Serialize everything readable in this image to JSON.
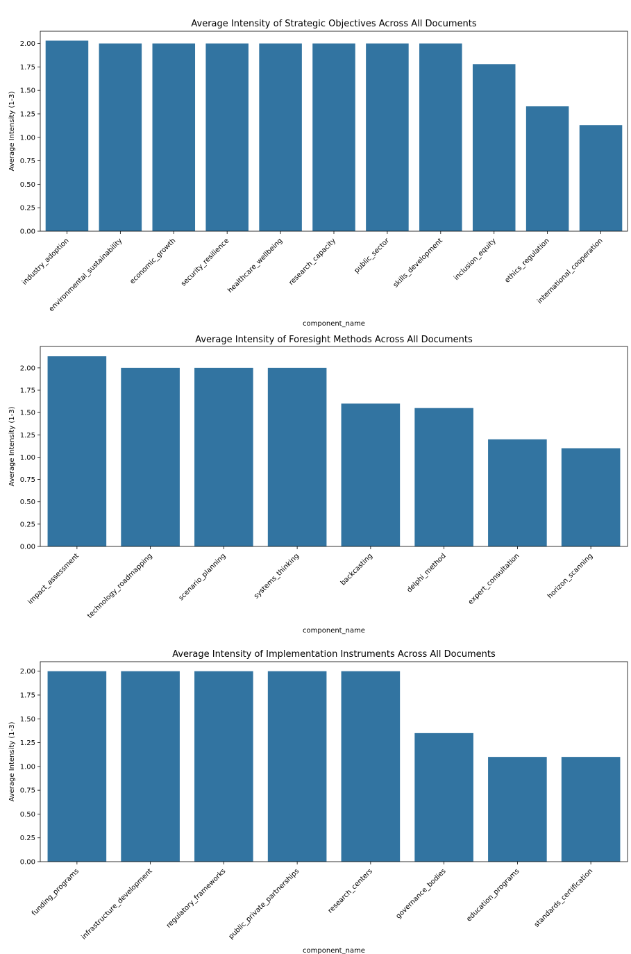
{
  "chart_data": [
    {
      "type": "bar",
      "title": "Average Intensity of Strategic Objectives Across All Documents",
      "xlabel": "component_name",
      "ylabel": "Average Intensity (1-3)",
      "ylim": [
        0,
        2.13
      ],
      "yticks": [
        "0.00",
        "0.25",
        "0.50",
        "0.75",
        "1.00",
        "1.25",
        "1.50",
        "1.75",
        "2.00"
      ],
      "grid": false,
      "color": "#3274a1",
      "categories": [
        "industry_adoption",
        "environmental_sustainability",
        "economic_growth",
        "security_resilience",
        "healthcare_wellbeing",
        "research_capacity",
        "public_sector",
        "skills_development",
        "inclusion_equity",
        "ethics_regulation",
        "international_cooperation"
      ],
      "values": [
        2.03,
        2.0,
        2.0,
        2.0,
        2.0,
        2.0,
        2.0,
        2.0,
        1.78,
        1.33,
        1.13
      ]
    },
    {
      "type": "bar",
      "title": "Average Intensity of Foresight Methods Across All Documents",
      "xlabel": "component_name",
      "ylabel": "Average Intensity (1-3)",
      "ylim": [
        0,
        2.24
      ],
      "yticks": [
        "0.00",
        "0.25",
        "0.50",
        "0.75",
        "1.00",
        "1.25",
        "1.50",
        "1.75",
        "2.00"
      ],
      "grid": false,
      "color": "#3274a1",
      "categories": [
        "impact_assessment",
        "technology_roadmapping",
        "scenario_planning",
        "systems_thinking",
        "backcasting",
        "delphi_method",
        "expert_consultation",
        "horizon_scanning"
      ],
      "values": [
        2.13,
        2.0,
        2.0,
        2.0,
        1.6,
        1.55,
        1.2,
        1.1
      ]
    },
    {
      "type": "bar",
      "title": "Average Intensity of Implementation Instruments Across All Documents",
      "xlabel": "component_name",
      "ylabel": "Average Intensity (1-3)",
      "ylim": [
        0,
        2.1
      ],
      "yticks": [
        "0.00",
        "0.25",
        "0.50",
        "0.75",
        "1.00",
        "1.25",
        "1.50",
        "1.75",
        "2.00"
      ],
      "grid": false,
      "color": "#3274a1",
      "categories": [
        "funding_programs",
        "infrastructure_development",
        "regulatory_frameworks",
        "public_private_partnerships",
        "research_centers",
        "governance_bodies",
        "education_programs",
        "standards_certification"
      ],
      "values": [
        2.0,
        2.0,
        2.0,
        2.0,
        2.0,
        1.35,
        1.1,
        1.1
      ]
    }
  ]
}
